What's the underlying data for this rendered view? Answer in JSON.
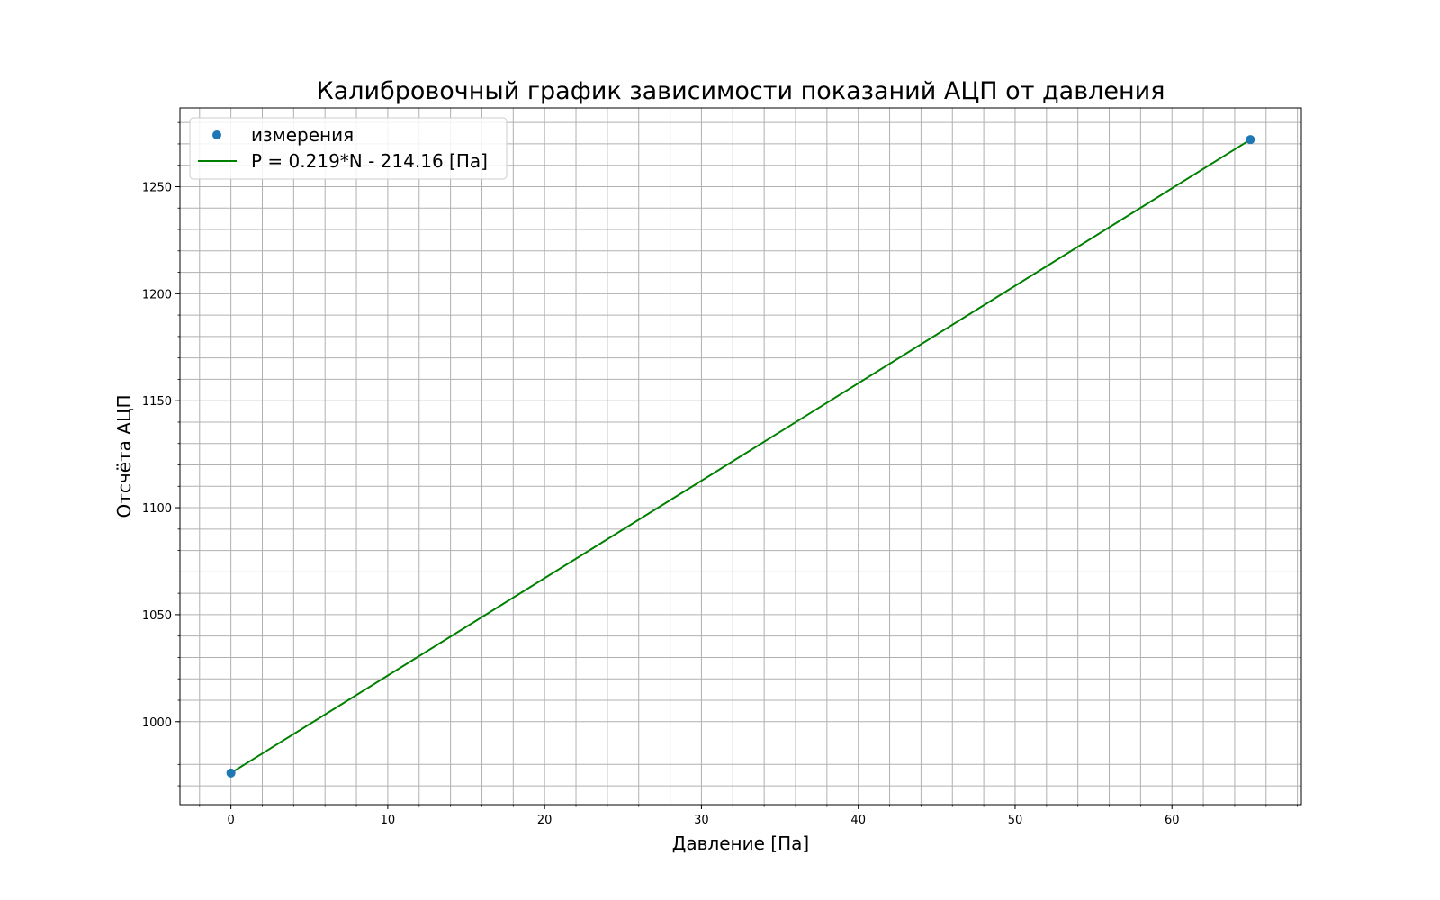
{
  "chart_data": {
    "type": "scatter",
    "title": "Калибровочный график зависимости показаний АЦП от давления",
    "xlabel": "Давление [Па]",
    "ylabel": "Отсчёта АЦП",
    "xlim": [
      -3.25,
      68.25
    ],
    "ylim": [
      961.2,
      1286.8
    ],
    "x_ticks": [
      0,
      10,
      20,
      30,
      40,
      50,
      60
    ],
    "y_ticks": [
      1000,
      1050,
      1100,
      1150,
      1200,
      1250
    ],
    "x_minor_step": 2,
    "y_minor_step": 10,
    "grid": "major and minor",
    "legend_position": "top-left",
    "series": [
      {
        "name": "измерения",
        "kind": "scatter",
        "color": "#1f77b4",
        "points": [
          {
            "x": 0,
            "y": 976
          },
          {
            "x": 65,
            "y": 1272
          }
        ]
      },
      {
        "name": "P = 0.219*N - 214.16 [Па]",
        "kind": "line",
        "color": "#008000",
        "points": [
          {
            "x": 0,
            "y": 976
          },
          {
            "x": 65,
            "y": 1272
          }
        ]
      }
    ]
  }
}
